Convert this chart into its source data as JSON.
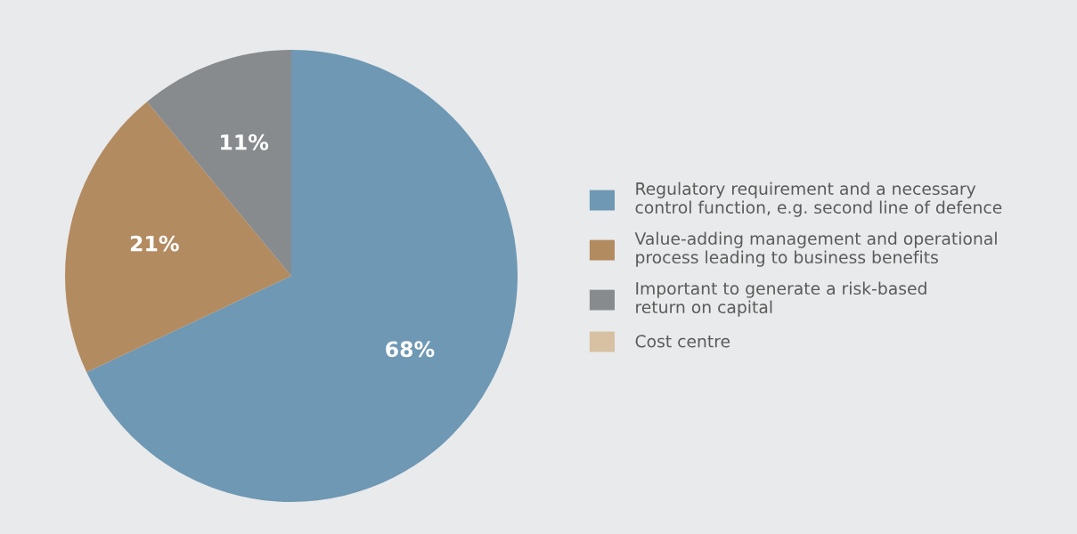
{
  "chart_data": {
    "type": "pie",
    "categories": [
      "Regulatory requirement and a necessary\ncontrol function, e.g. second line of defence",
      "Value-adding management and operational\nprocess leading to business benefits",
      "Important to generate a risk-based\nreturn on capital",
      "Cost centre"
    ],
    "values": [
      68,
      21,
      11,
      0
    ],
    "colors": [
      "#6e98b4",
      "#b38b61",
      "#888b8e",
      "#d8c0a3"
    ],
    "value_labels": [
      "68%",
      "21%",
      "11%",
      null
    ],
    "legend": "right"
  }
}
